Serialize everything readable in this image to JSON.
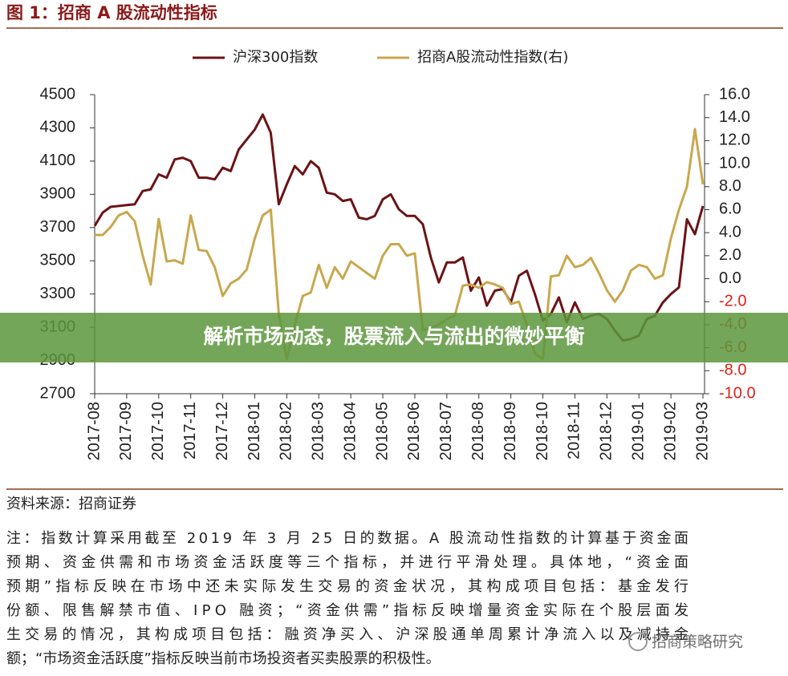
{
  "chart_data": {
    "type": "line",
    "title": "图 1：招商 A 股流动性指标",
    "categories": [
      "2017-08",
      null,
      null,
      null,
      "2017-09",
      null,
      null,
      null,
      "2017-10",
      null,
      null,
      null,
      "2017-11",
      null,
      null,
      null,
      "2017-12",
      null,
      null,
      null,
      "2018-01",
      null,
      null,
      null,
      "2018-02",
      null,
      null,
      null,
      "2018-03",
      null,
      null,
      null,
      "2018-04",
      null,
      null,
      null,
      "2018-05",
      null,
      null,
      null,
      "2018-06",
      null,
      null,
      null,
      "2018-07",
      null,
      null,
      null,
      "2018-08",
      null,
      null,
      null,
      "2018-09",
      null,
      null,
      null,
      "2018-10",
      null,
      null,
      null,
      "2018-11",
      null,
      null,
      null,
      "2018-12",
      null,
      null,
      null,
      "2019-01",
      null,
      null,
      null,
      "2019-02",
      null,
      null,
      null,
      "2019-03"
    ],
    "series": [
      {
        "name": "沪深300指数",
        "color": "#6b1416",
        "values": [
          3710,
          3790,
          3825,
          3830,
          3835,
          3840,
          3920,
          3930,
          4020,
          4000,
          4110,
          4120,
          4100,
          4000,
          4000,
          3990,
          4060,
          4040,
          4170,
          4230,
          4290,
          4380,
          4270,
          3840,
          3960,
          4070,
          4020,
          4100,
          4060,
          3910,
          3900,
          3860,
          3870,
          3760,
          3750,
          3770,
          3870,
          3900,
          3810,
          3770,
          3770,
          3720,
          3520,
          3370,
          3490,
          3490,
          3520,
          3320,
          3400,
          3230,
          3320,
          3330,
          3250,
          3410,
          3440,
          3300,
          3140,
          3180,
          3280,
          3130,
          3250,
          3150,
          3170,
          3180,
          3150,
          3080,
          3020,
          3030,
          3050,
          3150,
          3170,
          3250,
          3300,
          3340,
          3750,
          3660,
          3830
        ]
      },
      {
        "name": "招商A股流动性指数(右)",
        "color": "#c8a84e",
        "axis": "y2",
        "values": [
          3.8,
          3.8,
          4.5,
          5.5,
          5.8,
          5.0,
          2.0,
          -0.5,
          5.2,
          1.5,
          1.6,
          1.3,
          5.5,
          2.5,
          2.4,
          1.0,
          -1.5,
          -0.4,
          0.0,
          0.8,
          3.5,
          5.5,
          6.0,
          -3.0,
          -7.0,
          -4.0,
          -1.5,
          -1.2,
          1.2,
          -0.8,
          1.0,
          0.0,
          1.5,
          1.0,
          0.5,
          0.0,
          2.0,
          3.0,
          3.0,
          2.0,
          2.2,
          -4.5,
          -4.3,
          -4.0,
          -3.5,
          -3.2,
          -0.6,
          -0.5,
          -0.8,
          -0.3,
          -0.5,
          -0.8,
          -2.2,
          -2.0,
          -4.0,
          -6.5,
          -7.0,
          0.2,
          0.3,
          2.0,
          1.0,
          1.2,
          1.8,
          0.5,
          -1.0,
          -2.0,
          -1.0,
          0.7,
          1.2,
          1.0,
          0.0,
          0.3,
          3.5,
          6.0,
          8.0,
          13.0,
          8.2
        ]
      }
    ],
    "ylim": [
      2700,
      4500
    ],
    "yticks": [
      2700,
      2900,
      3100,
      3300,
      3500,
      3700,
      3900,
      4100,
      4300,
      4500
    ],
    "y2lim": [
      -10,
      16
    ],
    "y2ticks": [
      {
        "value": -10,
        "label": "-10.0"
      },
      {
        "value": -8,
        "label": "-8.0"
      },
      {
        "value": -6,
        "label": "-6.0"
      },
      {
        "value": -4,
        "label": "-4.0"
      },
      {
        "value": -2,
        "label": "-2.0"
      },
      {
        "value": 0,
        "label": "0.0"
      },
      {
        "value": 2,
        "label": "2.0"
      },
      {
        "value": 4,
        "label": "4.0"
      },
      {
        "value": 6,
        "label": "6.0"
      },
      {
        "value": 8,
        "label": "8.0"
      },
      {
        "value": 10,
        "label": "10.0"
      },
      {
        "value": 12,
        "label": "12.0"
      },
      {
        "value": 14,
        "label": "14.0"
      },
      {
        "value": 16,
        "label": "16.0"
      }
    ],
    "legend": "top"
  },
  "source": "资料来源：招商证券",
  "note": [
    "注：指数计算采用截至 2019 年 3 月 25 日的数据。A 股流动性指数的计算基于资金面",
    "预期、资金供需和市场资金活跃度等三个指标，并进行平滑处理。具体地，“资金面",
    "预期”指标反映在市场中还未实际发生交易的资金状况，其构成项目包括：基金发行",
    "份额、限售解禁市值、IPO 融资；“资金供需”指标反映增量资金实际在个股层面发",
    "生交易的情况，其构成项目包括：融资净买入、沪深股通单周累计净流入以及减持金",
    "额；“市场资金活跃度”指标反映当前市场投资者买卖股票的积极性。"
  ],
  "banner": "解析市场动态，股票流入与流出的微妙平衡",
  "watermark": "招商策略研究"
}
